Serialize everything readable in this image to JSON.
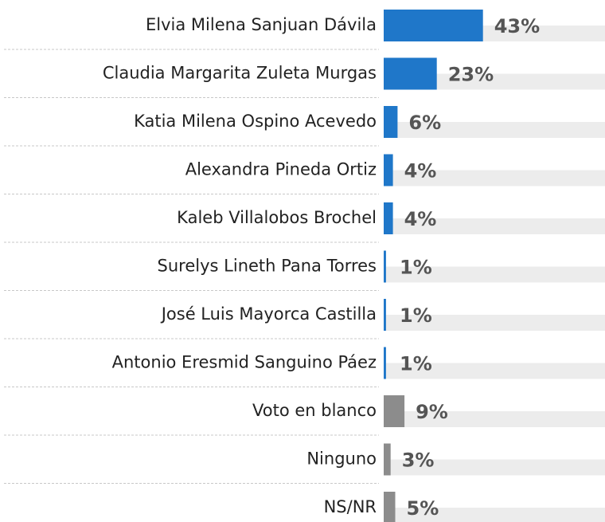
{
  "chart_data": {
    "type": "bar",
    "orientation": "horizontal",
    "categories": [
      "Elvia Milena Sanjuan Dávila",
      "Claudia Margarita Zuleta Murgas",
      "Katia Milena Ospino Acevedo",
      "Alexandra Pineda Ortiz",
      "Kaleb Villalobos Brochel",
      "Surelys Lineth Pana Torres",
      "José Luis Mayorca Castilla",
      "Antonio Eresmid Sanguino Páez",
      "Voto en blanco",
      "Ninguno",
      "NS/NR"
    ],
    "values": [
      43,
      23,
      6,
      4,
      4,
      1,
      1,
      1,
      9,
      3,
      5
    ],
    "value_labels": [
      "43%",
      "23%",
      "6%",
      "4%",
      "4%",
      "1%",
      "1%",
      "1%",
      "9%",
      "3%",
      "5%"
    ],
    "colors": [
      "#1f77c9",
      "#1f77c9",
      "#1f77c9",
      "#1f77c9",
      "#1f77c9",
      "#1f77c9",
      "#1f77c9",
      "#1f77c9",
      "#8c8c8c",
      "#8c8c8c",
      "#8c8c8c"
    ]
  }
}
